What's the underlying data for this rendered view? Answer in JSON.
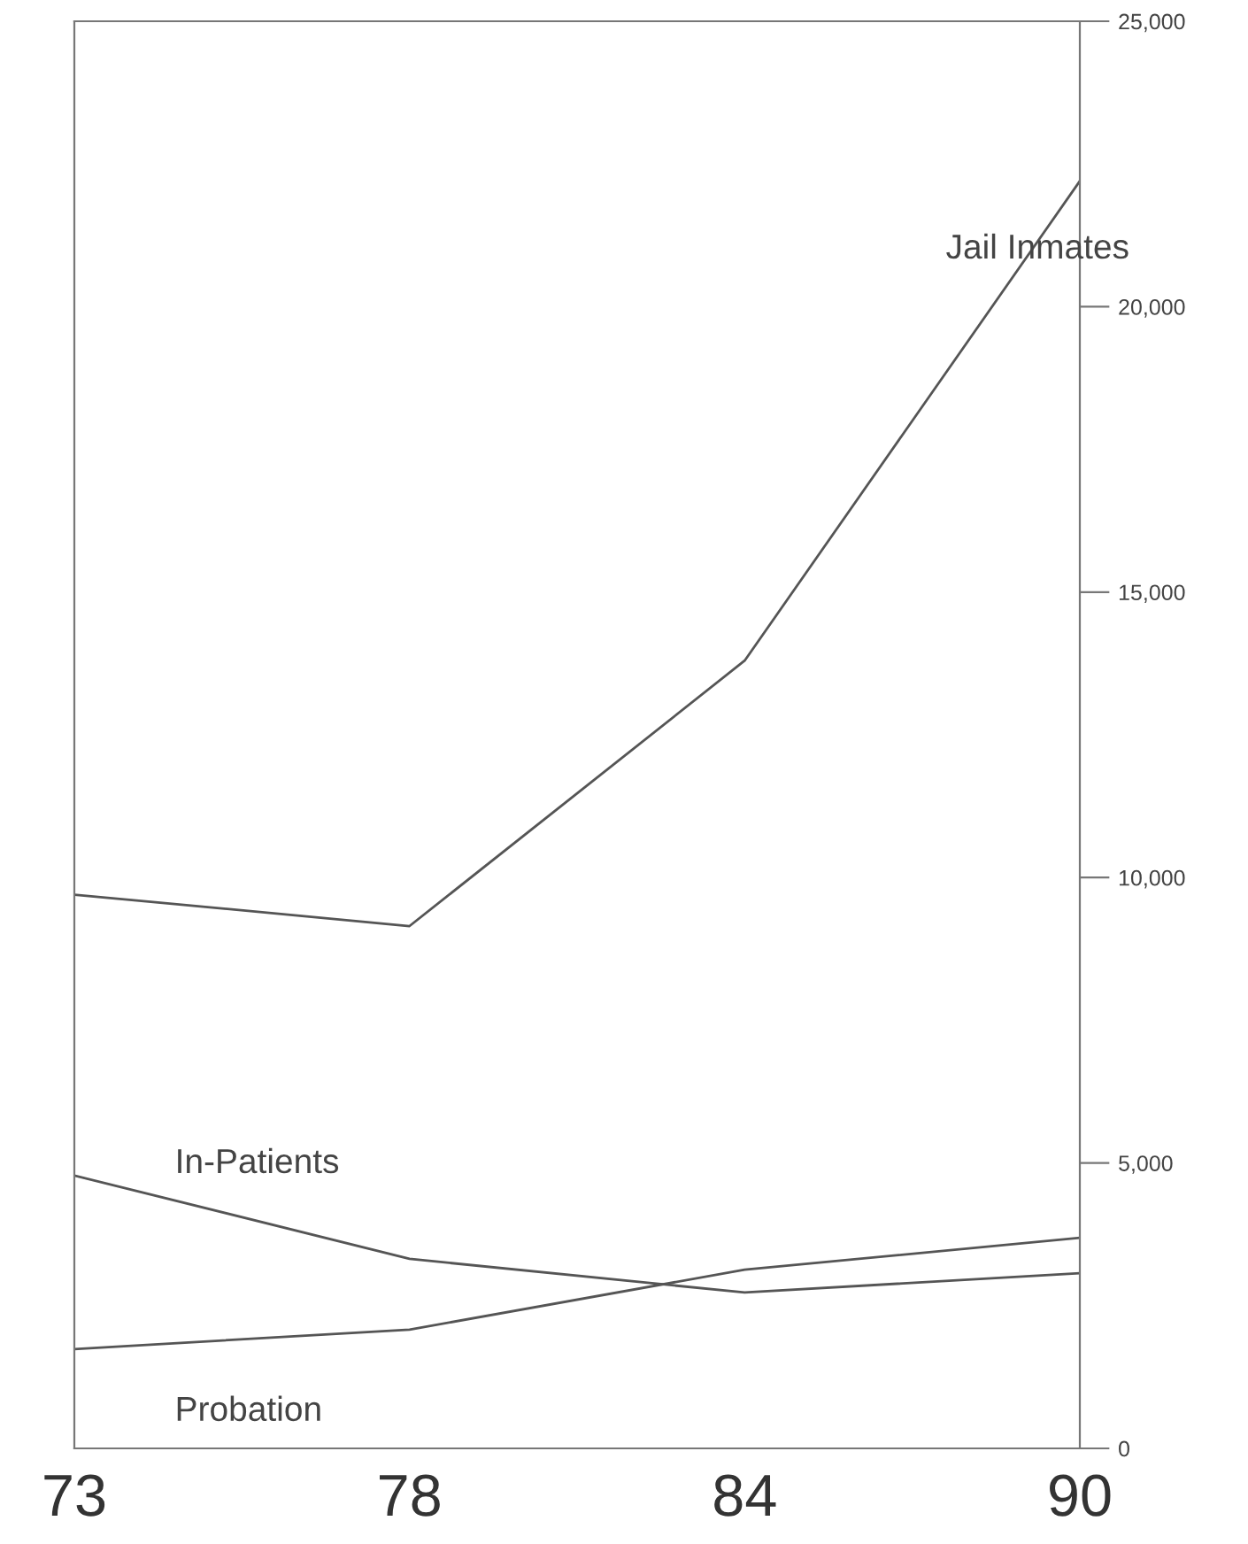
{
  "chart_data": {
    "type": "line",
    "categories": [
      "73",
      "78",
      "84",
      "90"
    ],
    "series": [
      {
        "name": "Jail Inmates",
        "color": "#555555",
        "values": [
          9700,
          9150,
          13800,
          22200
        ]
      },
      {
        "name": "In-Patients",
        "color": "#555555",
        "values": [
          4780,
          3320,
          2730,
          3070
        ]
      },
      {
        "name": "Probation",
        "color": "#555555",
        "values": [
          1740,
          2080,
          3130,
          3690
        ]
      }
    ],
    "ylim": [
      0,
      25000
    ],
    "yticks": [
      {
        "value": 0,
        "label": "0"
      },
      {
        "value": 5000,
        "label": "5,000"
      },
      {
        "value": 10000,
        "label": "10,000"
      },
      {
        "value": 15000,
        "label": "15,000"
      },
      {
        "value": 20000,
        "label": "20,000"
      },
      {
        "value": 25000,
        "label": "25,000"
      }
    ],
    "grid": false,
    "legend": false,
    "marker": "none",
    "line_style": "solid"
  }
}
